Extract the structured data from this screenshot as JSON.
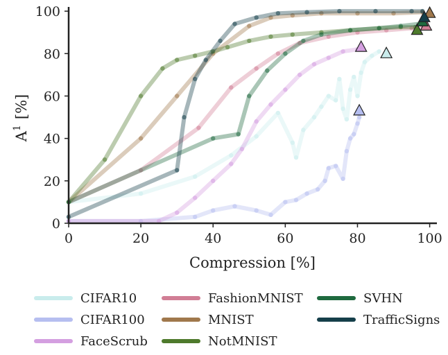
{
  "chart_data": {
    "type": "line",
    "xlabel": "Compression [%]",
    "ylabel": "A",
    "ylabel_sup": "1",
    "ylabel_unit": "[%]",
    "xlim": [
      0,
      102
    ],
    "ylim": [
      0,
      102
    ],
    "xticks": [
      0,
      20,
      40,
      60,
      80,
      100
    ],
    "yticks": [
      0,
      20,
      40,
      60,
      80,
      100
    ],
    "grid": false,
    "legend_position": "bottom",
    "series": [
      {
        "name": "CIFAR10",
        "color": "#c9ecec",
        "points": [
          [
            0,
            10
          ],
          [
            20,
            14
          ],
          [
            35,
            22
          ],
          [
            45,
            32
          ],
          [
            52,
            41
          ],
          [
            58,
            52
          ],
          [
            62,
            38
          ],
          [
            63,
            31
          ],
          [
            65,
            44
          ],
          [
            68,
            50
          ],
          [
            70,
            55
          ],
          [
            72,
            60
          ],
          [
            74,
            58
          ],
          [
            75,
            68
          ],
          [
            76,
            54
          ],
          [
            77,
            49
          ],
          [
            78,
            63
          ],
          [
            79,
            69
          ],
          [
            80,
            60
          ],
          [
            81,
            71
          ],
          [
            82,
            76
          ],
          [
            84,
            79
          ],
          [
            86,
            81
          ]
        ],
        "marker_point": [
          88,
          80
        ]
      },
      {
        "name": "CIFAR100",
        "color": "#b6bef0",
        "points": [
          [
            0,
            1
          ],
          [
            20,
            1
          ],
          [
            35,
            3
          ],
          [
            40,
            6
          ],
          [
            46,
            8
          ],
          [
            52,
            6
          ],
          [
            56,
            4
          ],
          [
            60,
            10
          ],
          [
            63,
            11
          ],
          [
            66,
            14
          ],
          [
            69,
            16
          ],
          [
            71,
            20
          ],
          [
            72,
            26
          ],
          [
            74,
            27
          ],
          [
            76,
            21
          ],
          [
            77,
            34
          ],
          [
            78,
            40
          ],
          [
            79,
            42
          ],
          [
            80,
            47
          ],
          [
            80.5,
            50
          ]
        ],
        "marker_point": [
          80.5,
          53
        ]
      },
      {
        "name": "FaceScrub",
        "color": "#d49fe0",
        "points": [
          [
            0,
            1
          ],
          [
            25,
            1
          ],
          [
            30,
            5
          ],
          [
            35,
            12
          ],
          [
            40,
            20
          ],
          [
            45,
            28
          ],
          [
            48,
            35
          ],
          [
            52,
            48
          ],
          [
            56,
            56
          ],
          [
            60,
            63
          ],
          [
            64,
            70
          ],
          [
            68,
            75
          ],
          [
            72,
            78
          ],
          [
            76,
            81
          ],
          [
            80,
            82
          ]
        ],
        "marker_point": [
          81,
          83
        ]
      },
      {
        "name": "FashionMNIST",
        "color": "#d17e95",
        "points": [
          [
            0,
            10
          ],
          [
            20,
            25
          ],
          [
            36,
            45
          ],
          [
            45,
            64
          ],
          [
            52,
            73
          ],
          [
            58,
            80
          ],
          [
            64,
            85
          ],
          [
            72,
            88
          ],
          [
            80,
            90
          ],
          [
            88,
            91
          ],
          [
            95,
            92
          ],
          [
            98,
            93
          ]
        ],
        "marker_point": [
          99,
          93
        ]
      },
      {
        "name": "MNIST",
        "color": "#a0784c",
        "points": [
          [
            0,
            10
          ],
          [
            20,
            40
          ],
          [
            30,
            60
          ],
          [
            40,
            80
          ],
          [
            50,
            93
          ],
          [
            56,
            97
          ],
          [
            62,
            98
          ],
          [
            70,
            99
          ],
          [
            80,
            99
          ],
          [
            90,
            99
          ],
          [
            98,
            99.5
          ]
        ],
        "marker_point": [
          100,
          99
        ]
      },
      {
        "name": "NotMNIST",
        "color": "#4e7a2c",
        "points": [
          [
            0,
            10
          ],
          [
            10,
            30
          ],
          [
            20,
            60
          ],
          [
            26,
            73
          ],
          [
            30,
            77
          ],
          [
            35,
            79
          ],
          [
            40,
            81
          ],
          [
            44,
            83
          ],
          [
            50,
            86
          ],
          [
            56,
            88
          ],
          [
            62,
            89
          ],
          [
            70,
            90
          ],
          [
            78,
            91
          ],
          [
            86,
            92
          ],
          [
            92,
            92.5
          ],
          [
            96,
            92.5
          ]
        ],
        "marker_point": [
          96.5,
          91
        ]
      },
      {
        "name": "SVHN",
        "color": "#1f6a3f",
        "points": [
          [
            0,
            10
          ],
          [
            40,
            40
          ],
          [
            47,
            42
          ],
          [
            50,
            60
          ],
          [
            55,
            72
          ],
          [
            60,
            80
          ],
          [
            65,
            86
          ],
          [
            70,
            89
          ],
          [
            78,
            91
          ],
          [
            86,
            92
          ],
          [
            92,
            93
          ],
          [
            97,
            94
          ]
        ],
        "marker_point": [
          98,
          95
        ]
      },
      {
        "name": "TrafficSigns",
        "color": "#153f4a",
        "points": [
          [
            0,
            3
          ],
          [
            30,
            25
          ],
          [
            32,
            50
          ],
          [
            35,
            68
          ],
          [
            38,
            77
          ],
          [
            42,
            86
          ],
          [
            46,
            94
          ],
          [
            52,
            97
          ],
          [
            58,
            99
          ],
          [
            66,
            99.5
          ],
          [
            75,
            100
          ],
          [
            85,
            100
          ],
          [
            95,
            100
          ],
          [
            98,
            100
          ]
        ],
        "marker_point": [
          98.5,
          97
        ]
      }
    ],
    "legend": [
      [
        "CIFAR10",
        "CIFAR100",
        "FaceScrub"
      ],
      [
        "FashionMNIST",
        "MNIST",
        "NotMNIST"
      ],
      [
        "SVHN",
        "TrafficSigns"
      ]
    ]
  }
}
